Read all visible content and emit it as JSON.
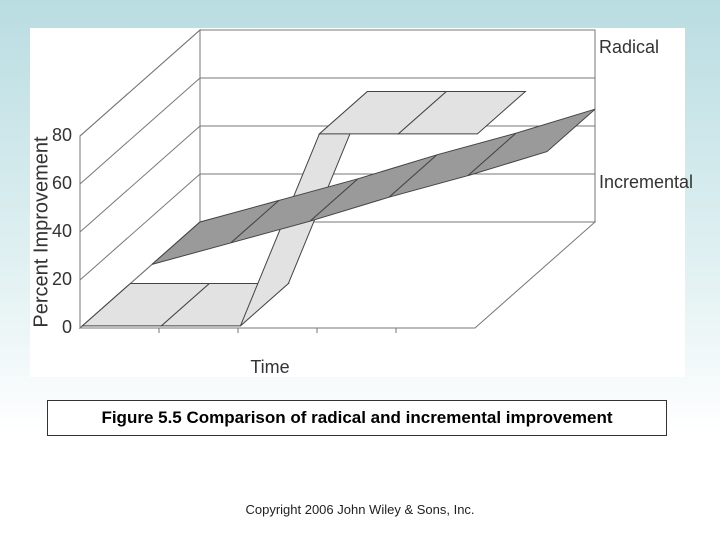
{
  "chart_data": {
    "type": "line3d",
    "y_label": "Percent Improvement",
    "x_label": "Time",
    "categories": [
      null,
      null,
      null,
      null,
      null,
      null
    ],
    "series": [
      {
        "name": "Radical",
        "color": "#e2e2e2",
        "values": [
          0,
          0,
          0,
          80,
          80,
          80
        ]
      },
      {
        "name": "Incremental",
        "color": "#9a9a9a",
        "values": [
          0,
          9,
          18,
          28,
          37,
          47
        ]
      }
    ],
    "ylim": [
      0,
      80
    ],
    "yticks": [
      0,
      20,
      40,
      60,
      80
    ],
    "grid": true
  },
  "caption": "Figure 5.5  Comparison of radical and incremental improvement",
  "copyright": "Copyright 2006 John Wiley & Sons, Inc."
}
